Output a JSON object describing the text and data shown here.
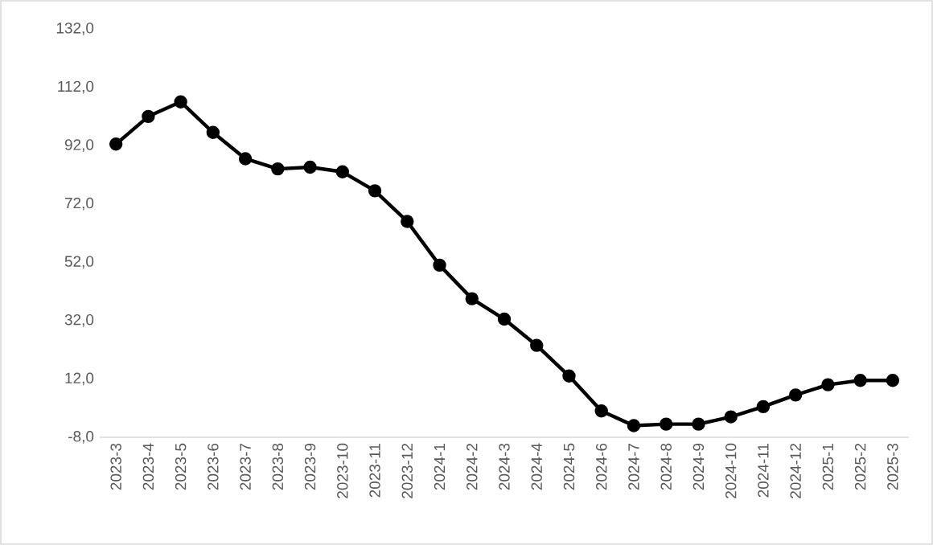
{
  "chart_data": {
    "type": "line",
    "categories": [
      "2023-3",
      "2023-4",
      "2023-5",
      "2023-6",
      "2023-7",
      "2023-8",
      "2023-9",
      "2023-10",
      "2023-11",
      "2023-12",
      "2024-1",
      "2024-2",
      "2024-3",
      "2024-4",
      "2024-5",
      "2024-6",
      "2024-7",
      "2024-8",
      "2024-9",
      "2024-10",
      "2024-11",
      "2024-12",
      "2025-1",
      "2025-2",
      "2025-3"
    ],
    "series": [
      {
        "color": "#000000",
        "values": [
          92.5,
          102,
          107,
          96.5,
          87.5,
          84,
          84.6,
          83,
          76.5,
          66,
          51,
          39.5,
          32.5,
          23.5,
          13,
          1,
          -4,
          -3.5,
          -3.5,
          -1,
          2.5,
          6.5,
          10,
          11.5,
          11.5
        ]
      }
    ],
    "ylim": [
      -8,
      132
    ],
    "yticks": [
      {
        "value": -8,
        "label": "-8,0"
      },
      {
        "value": 12,
        "label": "12,0"
      },
      {
        "value": 32,
        "label": "32,0"
      },
      {
        "value": 52,
        "label": "52,0"
      },
      {
        "value": 72,
        "label": "72,0"
      },
      {
        "value": 92,
        "label": "92,0"
      },
      {
        "value": 112,
        "label": "112,0"
      },
      {
        "value": 132,
        "label": "132,0"
      }
    ],
    "grid": false,
    "marker": "circle",
    "line_style": "solid"
  }
}
